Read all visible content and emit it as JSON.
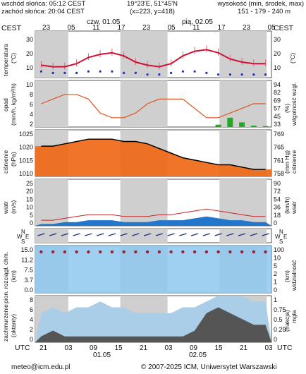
{
  "header": {
    "sunrise": "wschód słońca: 05:12 CEST",
    "sunset": "zachód słońca: 20:04 CEST",
    "coords": "19°23'E, 51°45'N",
    "grid": "(x=223, y=418)",
    "altitude_title": "wysokość (min, środek, max)",
    "altitude_values": "151 - 179 - 240 m"
  },
  "timeaxis": {
    "tz": "CEST",
    "tz_right": "CEST",
    "tz_bottom": "UTC",
    "tz_bottom_right": "UTC",
    "top_hours": [
      "23",
      "05",
      "11",
      "17",
      "23",
      "05",
      "11",
      "17",
      "23",
      "05"
    ],
    "day1": "czw, 01.05",
    "day2": "pią, 02.05",
    "bottom_hours": [
      "21",
      "03",
      "09",
      "15",
      "21",
      "03",
      "09",
      "15",
      "21",
      "03"
    ],
    "date1": "01.05",
    "date2": "02.05"
  },
  "panels": {
    "temperature": {
      "label": "temperatura",
      "unit_left": "(°C)",
      "unit_right": "(°C)",
      "ticks": [
        "30",
        "20",
        "10"
      ]
    },
    "precip": {
      "label": "opad",
      "unit_left": "(mm/h, kg/m²/h)",
      "label_right": "wilgotność wzgl.",
      "unit_right": "(%)",
      "left_ticks": [
        "10",
        "8",
        "6",
        "4",
        "2"
      ],
      "right_ticks": [
        "94",
        "82",
        "69",
        "57",
        "45",
        "33"
      ]
    },
    "pressure": {
      "label": "ciśnienie",
      "unit_left": "(hPa)",
      "label_right": "ciśnienie",
      "unit_right": "(mm Hg)",
      "left_ticks": [
        "1025",
        "1020",
        "1015",
        "1010"
      ],
      "right_ticks": [
        "769",
        "765",
        "761",
        "758"
      ]
    },
    "wind": {
      "label": "wiatr",
      "unit_left": "(m/s)",
      "label_right": "wiatr",
      "unit_right": "(km/h)",
      "left_ticks": [
        "25",
        "20",
        "15",
        "10",
        "5",
        "0"
      ],
      "right_ticks": [
        "90",
        "72",
        "54",
        "36",
        "18",
        "0"
      ]
    },
    "winddir": {
      "compass_left": [
        "N",
        "W",
        "E",
        "S"
      ],
      "compass_right": [
        "N",
        "W",
        "E",
        "S"
      ]
    },
    "clouds": {
      "label_left": "pion. rozciągł. chm.",
      "unit_left": "(km)",
      "label_right": "widzialność",
      "unit_right": "(km)",
      "left_ticks": [
        "15.0",
        "11.2",
        "7.5",
        "3.7",
        "0.0"
      ],
      "right_ticks": [
        "100",
        "10",
        "5",
        "2",
        "1",
        "0"
      ]
    },
    "cover": {
      "label_left": "zachmurzenie",
      "unit_left": "(oktanty)",
      "label_right": "mgła",
      "unit_right": "(frakcja)",
      "left_ticks": [
        "8",
        "6",
        "4",
        "2",
        "0"
      ],
      "right_ticks": [
        "1",
        "0.75",
        "0.5",
        "0.25",
        "0"
      ]
    }
  },
  "footer": {
    "email": "meteo@icm.edu.pl",
    "copyright": "© 2007-2025 ICM, Uniwersytet Warszawski"
  },
  "colors": {
    "night": "#cfcfcf",
    "day": "#ffffff",
    "temp_line": "#cc1133",
    "dew_dots": "#2233aa",
    "humidity_line": "#dd5522",
    "wind_line": "#cc2222",
    "pressure_fill": "#ee6611",
    "sky": "#8fc8ee"
  },
  "chart_data": [
    {
      "type": "line",
      "title": "temperatura",
      "ylabel": "(°C)",
      "ylim": [
        5,
        35
      ],
      "x": [
        "23",
        "02",
        "05",
        "08",
        "11",
        "14",
        "17",
        "20",
        "23",
        "02",
        "05",
        "08",
        "11",
        "14",
        "17",
        "20",
        "23",
        "02",
        "05",
        "08"
      ],
      "series": [
        {
          "values": [
            13,
            12,
            12,
            14,
            18,
            20,
            21,
            19,
            15,
            13,
            12,
            14,
            19,
            22,
            23,
            21,
            17,
            15,
            14,
            14
          ]
        },
        {
          "values": [
            9,
            8,
            8,
            8,
            9,
            9,
            9,
            8,
            8,
            7,
            7,
            8,
            9,
            9,
            8,
            7,
            7,
            7,
            7,
            7
          ]
        }
      ]
    },
    {
      "type": "line",
      "title": "opad",
      "ylabel": "(mm/h, kg/m²/h)",
      "ylim": [
        0,
        10
      ],
      "x": [
        "23",
        "02",
        "05",
        "08",
        "11",
        "14",
        "17",
        "20",
        "23",
        "02",
        "05",
        "08",
        "11",
        "14",
        "17",
        "20",
        "23",
        "02",
        "05",
        "08"
      ],
      "series": [
        {
          "values": [
            5,
            6,
            7,
            7,
            6,
            3,
            2,
            2,
            3,
            5,
            6,
            6,
            6,
            4,
            2,
            2,
            3,
            4,
            5,
            5
          ]
        },
        {
          "values": [
            0,
            0,
            0,
            0,
            0,
            0,
            0,
            0,
            0,
            0,
            0,
            0,
            0,
            0,
            0,
            0.5,
            2,
            1,
            0.3,
            0.2
          ]
        }
      ]
    },
    {
      "type": "area",
      "title": "ciśnienie",
      "ylabel": "(hPa)",
      "ylim": [
        1007,
        1027
      ],
      "x": [
        "23",
        "02",
        "05",
        "08",
        "11",
        "14",
        "17",
        "20",
        "23",
        "02",
        "05",
        "08",
        "11",
        "14",
        "17",
        "20",
        "23",
        "02",
        "05",
        "08"
      ],
      "series": [
        {
          "values": [
            1020,
            1020,
            1021,
            1022,
            1023,
            1023,
            1023,
            1022,
            1022,
            1021,
            1019,
            1017,
            1015,
            1014,
            1013,
            1012,
            1012,
            1011,
            1010,
            1010
          ]
        }
      ]
    },
    {
      "type": "line",
      "title": "wiatr",
      "ylabel": "(m/s)",
      "ylim": [
        0,
        25
      ],
      "x": [
        "23",
        "02",
        "05",
        "08",
        "11",
        "14",
        "17",
        "20",
        "23",
        "02",
        "05",
        "08",
        "11",
        "14",
        "17",
        "20",
        "23",
        "02",
        "05",
        "08"
      ],
      "series": [
        {
          "values": [
            3,
            3,
            4,
            5,
            6,
            6,
            6,
            5,
            5,
            5,
            6,
            6,
            7,
            8,
            9,
            8,
            7,
            6,
            5,
            5
          ]
        },
        {
          "values": [
            1,
            1,
            2,
            2,
            3,
            3,
            3,
            2,
            2,
            2,
            3,
            3,
            3,
            4,
            5,
            4,
            3,
            3,
            2,
            2
          ]
        }
      ]
    },
    {
      "type": "area",
      "title": "zachmurzenie",
      "ylabel": "(oktanty)",
      "ylim": [
        0,
        8
      ],
      "x": [
        "23",
        "02",
        "05",
        "08",
        "11",
        "14",
        "17",
        "20",
        "23",
        "02",
        "05",
        "08",
        "11",
        "14",
        "17",
        "20",
        "23",
        "02",
        "05",
        "08"
      ],
      "series": [
        {
          "values": [
            5,
            6,
            5,
            6,
            6,
            7,
            6,
            6,
            5,
            5,
            5,
            5,
            6,
            6,
            7,
            8,
            8,
            8,
            7,
            7
          ]
        },
        {
          "values": [
            1,
            2,
            1,
            1,
            1,
            1,
            1,
            1,
            1,
            1,
            1,
            1,
            1,
            2,
            5,
            6,
            5,
            4,
            3,
            3
          ]
        }
      ]
    }
  ]
}
